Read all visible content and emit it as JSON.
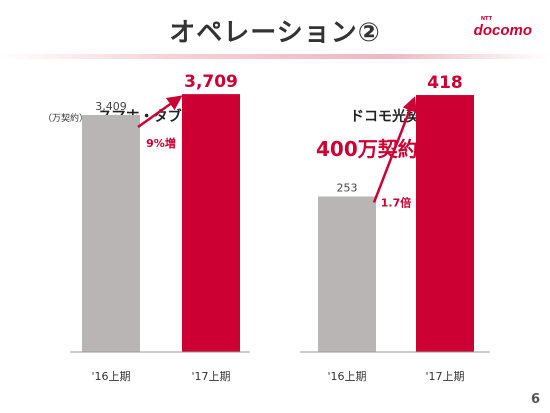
{
  "slide": {
    "title": "オペレーション②",
    "logo_text": "docomo",
    "logo_ntt": "NTT",
    "unit_label": "（万契約）",
    "page_number": "6"
  },
  "colors": {
    "prior": "#b9b5b5",
    "current": "#cc0033",
    "text_dark": "#333333",
    "accent": "#cc0033"
  },
  "chart_data": [
    {
      "type": "bar",
      "title": "スマホ・タブ利用数",
      "categories": [
        "'16上期",
        "'17上期"
      ],
      "values": [
        3409,
        3709
      ],
      "value_labels": [
        "3,409",
        "3,709"
      ],
      "growth_label": "9%増",
      "ylim": [
        0,
        4200
      ]
    },
    {
      "type": "bar",
      "title": "ドコモ光契約数",
      "headline": "400万契約突破",
      "categories": [
        "'16上期",
        "'17上期"
      ],
      "values": [
        253,
        418
      ],
      "value_labels": [
        "253",
        "418"
      ],
      "growth_label": "1.7倍",
      "ylim": [
        0,
        475
      ]
    }
  ]
}
